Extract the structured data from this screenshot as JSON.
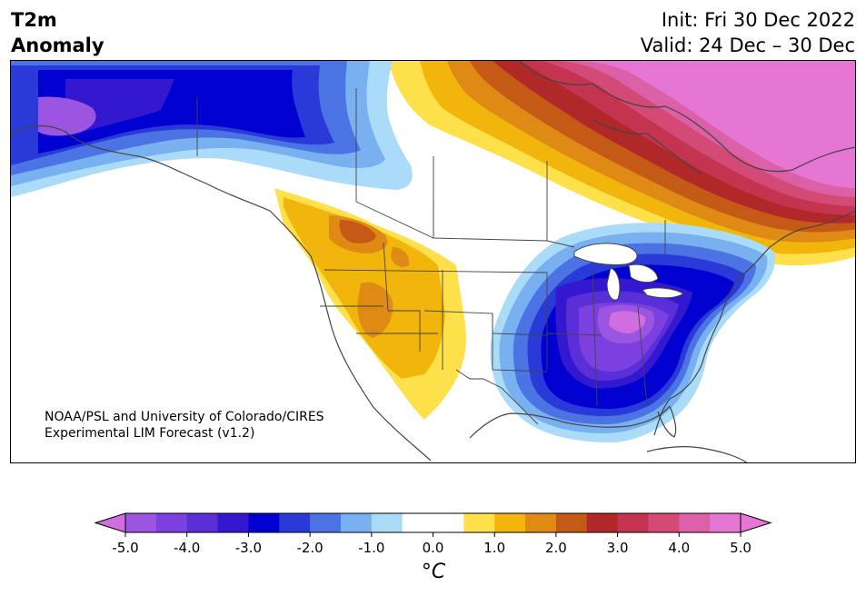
{
  "header": {
    "title_line1": "T2m",
    "title_line2": "Anomaly",
    "init_label": "Init: Fri 30 Dec 2022",
    "valid_label": "Valid: 24 Dec – 30 Dec"
  },
  "credit": {
    "line1": "NOAA/PSL and University of Colorado/CIRES",
    "line2": "Experimental LIM Forecast (v1.2)"
  },
  "colorbar": {
    "unit_label": "°C",
    "ticks": [
      "-5.0",
      "-4.0",
      "-3.0",
      "-2.0",
      "-1.0",
      "0.0",
      "1.0",
      "2.0",
      "3.0",
      "4.0",
      "5.0"
    ],
    "bins": [
      {
        "from": -5.0,
        "to": -4.5,
        "color": "#9b55e0"
      },
      {
        "from": -4.5,
        "to": -4.0,
        "color": "#7d40e0"
      },
      {
        "from": -4.0,
        "to": -3.5,
        "color": "#5a2fd8"
      },
      {
        "from": -3.5,
        "to": -3.0,
        "color": "#3418d0"
      },
      {
        "from": -3.0,
        "to": -2.5,
        "color": "#0000d0"
      },
      {
        "from": -2.5,
        "to": -2.0,
        "color": "#2a3ad8"
      },
      {
        "from": -2.0,
        "to": -1.5,
        "color": "#4b73e3"
      },
      {
        "from": -1.5,
        "to": -1.0,
        "color": "#78b0f0"
      },
      {
        "from": -1.0,
        "to": -0.5,
        "color": "#aadcfa"
      },
      {
        "from": -0.5,
        "to": 0.5,
        "color": "#ffffff"
      },
      {
        "from": 0.5,
        "to": 1.0,
        "color": "#fde04a"
      },
      {
        "from": 1.0,
        "to": 1.5,
        "color": "#f2b50b"
      },
      {
        "from": 1.5,
        "to": 2.0,
        "color": "#df8a14"
      },
      {
        "from": 2.0,
        "to": 2.5,
        "color": "#c55a16"
      },
      {
        "from": 2.5,
        "to": 3.0,
        "color": "#b02828"
      },
      {
        "from": 3.0,
        "to": 3.5,
        "color": "#c43450"
      },
      {
        "from": 3.5,
        "to": 4.0,
        "color": "#d24a75"
      },
      {
        "from": 4.0,
        "to": 4.5,
        "color": "#dc60a8"
      },
      {
        "from": 4.5,
        "to": 5.0,
        "color": "#e676d4"
      }
    ],
    "under_color": "#d06ee0",
    "over_color": "#e676d4",
    "extend": "both"
  }
}
